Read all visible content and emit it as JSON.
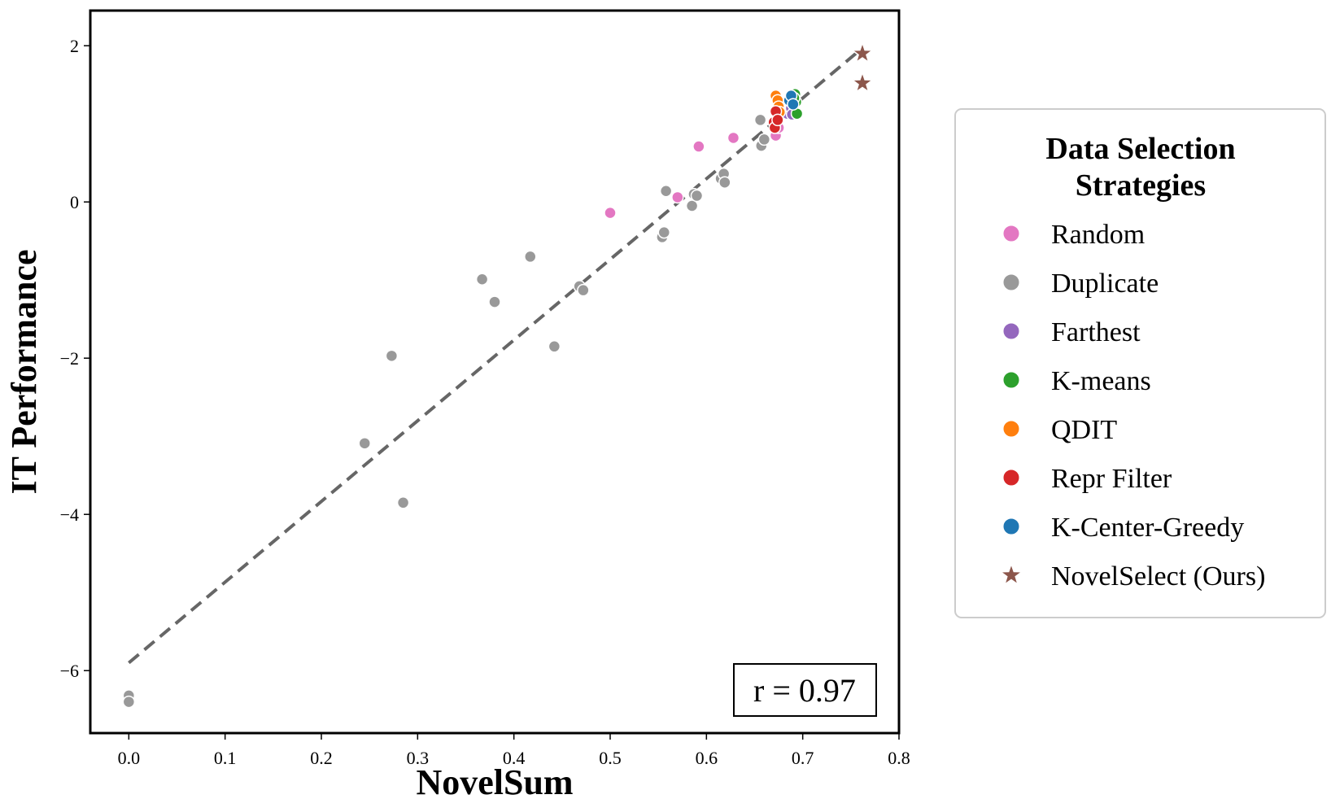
{
  "chart_data": {
    "type": "scatter",
    "xlabel": "NovelSum",
    "ylabel": "IT Performance",
    "xlim": [
      -0.04,
      0.8
    ],
    "ylim": [
      -6.8,
      2.45
    ],
    "xticks": [
      0.0,
      0.1,
      0.2,
      0.3,
      0.4,
      0.5,
      0.6,
      0.7,
      0.8
    ],
    "xtick_labels": [
      "0.0",
      "0.1",
      "0.2",
      "0.3",
      "0.4",
      "0.5",
      "0.6",
      "0.7",
      "0.8"
    ],
    "yticks": [
      2,
      0,
      -2,
      -4,
      -6
    ],
    "ytick_labels": [
      "2",
      "0",
      "−2",
      "−4",
      "−6"
    ],
    "grid": false,
    "legend": {
      "title_line1": "Data Selection",
      "title_line2": "Strategies",
      "placement": "outside-right"
    },
    "annotation": {
      "text": "r = 0.97",
      "placement": "bottom-right"
    },
    "trendline": {
      "style": "dashed",
      "color": "#666666",
      "x": [
        0.0,
        0.76
      ],
      "y": [
        -5.9,
        1.95
      ]
    },
    "series": [
      {
        "name": "Random",
        "color": "#e377c2",
        "marker": "circle",
        "points": [
          [
            0.5,
            -0.14
          ],
          [
            0.57,
            0.06
          ],
          [
            0.592,
            0.71
          ],
          [
            0.628,
            0.82
          ],
          [
            0.672,
            0.85
          ],
          [
            0.675,
            0.95
          ]
        ]
      },
      {
        "name": "Duplicate",
        "color": "#999999",
        "marker": "circle",
        "points": [
          [
            0.0,
            -6.32
          ],
          [
            0.0,
            -6.4
          ],
          [
            0.245,
            -3.09
          ],
          [
            0.273,
            -1.97
          ],
          [
            0.285,
            -3.85
          ],
          [
            0.367,
            -0.99
          ],
          [
            0.38,
            -1.28
          ],
          [
            0.417,
            -0.7
          ],
          [
            0.442,
            -1.85
          ],
          [
            0.468,
            -1.08
          ],
          [
            0.472,
            -1.13
          ],
          [
            0.554,
            -0.45
          ],
          [
            0.556,
            -0.39
          ],
          [
            0.558,
            0.14
          ],
          [
            0.585,
            -0.05
          ],
          [
            0.587,
            0.1
          ],
          [
            0.59,
            0.08
          ],
          [
            0.615,
            0.3
          ],
          [
            0.618,
            0.36
          ],
          [
            0.619,
            0.25
          ],
          [
            0.656,
            1.05
          ],
          [
            0.657,
            0.72
          ],
          [
            0.66,
            0.8
          ]
        ]
      },
      {
        "name": "Farthest",
        "color": "#9467bd",
        "marker": "circle",
        "points": [
          [
            0.684,
            1.13
          ],
          [
            0.688,
            1.2
          ],
          [
            0.689,
            1.12
          ]
        ]
      },
      {
        "name": "K-means",
        "color": "#2ca02c",
        "marker": "circle",
        "points": [
          [
            0.692,
            1.38
          ],
          [
            0.693,
            1.28
          ],
          [
            0.694,
            1.13
          ],
          [
            0.691,
            1.33
          ]
        ]
      },
      {
        "name": "QDIT",
        "color": "#ff7f0e",
        "marker": "circle",
        "points": [
          [
            0.672,
            1.36
          ],
          [
            0.674,
            1.3
          ],
          [
            0.675,
            1.22
          ],
          [
            0.676,
            1.15
          ]
        ]
      },
      {
        "name": "Repr Filter",
        "color": "#d62728",
        "marker": "circle",
        "points": [
          [
            0.67,
            1.02
          ],
          [
            0.671,
            0.95
          ],
          [
            0.672,
            1.16
          ],
          [
            0.674,
            1.05
          ]
        ]
      },
      {
        "name": "K-Center-Greedy",
        "color": "#1f77b4",
        "marker": "circle",
        "points": [
          [
            0.686,
            1.3
          ],
          [
            0.688,
            1.36
          ],
          [
            0.69,
            1.25
          ]
        ]
      },
      {
        "name": "NovelSelect (Ours)",
        "color": "#8c564b",
        "marker": "star",
        "points": [
          [
            0.762,
            1.9
          ],
          [
            0.762,
            1.52
          ]
        ]
      }
    ]
  }
}
